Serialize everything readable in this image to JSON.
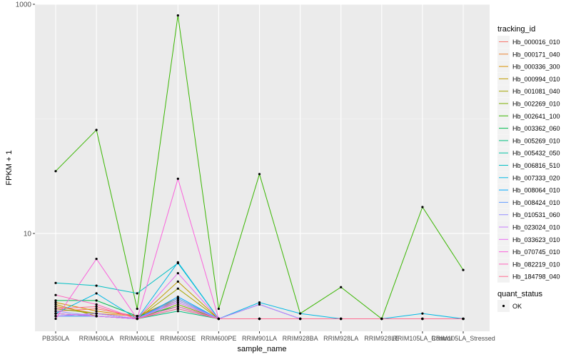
{
  "chart_data": {
    "type": "line",
    "xlabel": "sample_name",
    "ylabel": "FPKM + 1",
    "y_scale": "log10",
    "ylim": [
      1.4,
      1000
    ],
    "y_ticks": [
      {
        "value": 10,
        "label": "10"
      },
      {
        "value": 1000,
        "label": "1000"
      }
    ],
    "grid": true,
    "legend_position": "right",
    "categories": [
      "PB350LA",
      "RRIM600LA",
      "RRIM600LE",
      "RRIM600SE",
      "RRIM600PE",
      "RRIM901LA",
      "RRIM928BA",
      "RRIM928LA",
      "RRIM928LE",
      "RRIM105LA_Control",
      "RRIM105LA_Stressed"
    ],
    "legend_title": "tracking_id",
    "series": [
      {
        "name": "Hb_000016_010",
        "color": "#F8766D",
        "values": [
          2.1,
          2.2,
          1.9,
          2.5,
          1.8,
          1.8,
          1.8,
          1.8,
          1.8,
          1.8,
          1.8
        ]
      },
      {
        "name": "Hb_000171_040",
        "color": "#EA8331",
        "values": [
          2.3,
          2.0,
          1.9,
          2.6,
          1.8,
          1.8,
          1.8,
          1.8,
          1.8,
          1.8,
          1.8
        ]
      },
      {
        "name": "Hb_000336_300",
        "color": "#D89000",
        "values": [
          2.5,
          2.1,
          1.9,
          2.7,
          1.8,
          1.8,
          1.8,
          1.8,
          1.8,
          1.8,
          1.8
        ]
      },
      {
        "name": "Hb_000994_010",
        "color": "#C09B00",
        "values": [
          2.4,
          1.9,
          1.8,
          3.8,
          1.8,
          1.8,
          1.8,
          1.8,
          1.8,
          1.8,
          1.8
        ]
      },
      {
        "name": "Hb_001081_040",
        "color": "#A3A500",
        "values": [
          2.0,
          1.9,
          1.8,
          3.3,
          1.8,
          1.8,
          1.8,
          1.8,
          1.8,
          1.8,
          1.8
        ]
      },
      {
        "name": "Hb_002269_010",
        "color": "#7CAE00",
        "values": [
          2.2,
          2.0,
          1.8,
          2.4,
          1.8,
          1.8,
          1.8,
          1.8,
          1.8,
          1.8,
          1.8
        ]
      },
      {
        "name": "Hb_002641_100",
        "color": "#39B600",
        "values": [
          35,
          80,
          2.2,
          800,
          2.2,
          33,
          2.0,
          3.4,
          1.8,
          17,
          4.8
        ]
      },
      {
        "name": "Hb_003362_060",
        "color": "#00BB4E",
        "values": [
          2.6,
          2.6,
          1.9,
          2.3,
          1.8,
          1.8,
          1.8,
          1.8,
          1.8,
          1.8,
          1.8
        ]
      },
      {
        "name": "Hb_005269_010",
        "color": "#00BF7D",
        "values": [
          2.0,
          1.9,
          1.8,
          2.1,
          1.8,
          1.8,
          1.8,
          1.8,
          1.8,
          1.8,
          1.8
        ]
      },
      {
        "name": "Hb_005432_050",
        "color": "#00C1A3",
        "values": [
          1.9,
          1.9,
          1.8,
          2.2,
          1.8,
          1.8,
          1.8,
          1.8,
          1.8,
          1.8,
          1.8
        ]
      },
      {
        "name": "Hb_006816_510",
        "color": "#00BFC4",
        "values": [
          3.7,
          3.5,
          3.0,
          5.5,
          1.8,
          2.4,
          1.8,
          1.8,
          1.8,
          1.8,
          1.8
        ]
      },
      {
        "name": "Hb_007333_020",
        "color": "#00B8E5",
        "values": [
          2.0,
          3.0,
          1.8,
          5.6,
          1.8,
          2.5,
          2.0,
          1.8,
          1.8,
          2.0,
          1.8
        ]
      },
      {
        "name": "Hb_008064_010",
        "color": "#00A9FF",
        "values": [
          1.9,
          2.0,
          1.8,
          2.8,
          1.8,
          1.8,
          1.8,
          1.8,
          1.8,
          1.8,
          1.8
        ]
      },
      {
        "name": "Hb_008424_010",
        "color": "#619CFF",
        "values": [
          1.9,
          1.9,
          1.8,
          2.7,
          1.8,
          1.8,
          1.8,
          1.8,
          1.8,
          1.8,
          1.8
        ]
      },
      {
        "name": "Hb_010531_060",
        "color": "#9590FF",
        "values": [
          2.1,
          1.9,
          1.8,
          2.6,
          1.8,
          1.8,
          1.8,
          1.8,
          1.8,
          1.8,
          1.8
        ]
      },
      {
        "name": "Hb_023024_010",
        "color": "#C77CFF",
        "values": [
          1.9,
          2.0,
          1.8,
          2.5,
          1.8,
          2.4,
          1.8,
          1.8,
          1.8,
          1.8,
          1.8
        ]
      },
      {
        "name": "Hb_033623_010",
        "color": "#E76BF3",
        "values": [
          2.0,
          1.9,
          1.8,
          4.5,
          1.8,
          1.8,
          1.8,
          1.8,
          1.8,
          1.8,
          1.8
        ]
      },
      {
        "name": "Hb_070745_010",
        "color": "#FA62DB",
        "values": [
          1.8,
          6.0,
          1.8,
          30,
          1.8,
          1.8,
          1.8,
          1.8,
          1.8,
          1.8,
          1.8
        ]
      },
      {
        "name": "Hb_082219_010",
        "color": "#FF62BC",
        "values": [
          2.9,
          2.4,
          1.8,
          2.3,
          1.8,
          1.8,
          1.8,
          1.8,
          1.8,
          1.8,
          1.8
        ]
      },
      {
        "name": "Hb_184798_040",
        "color": "#FF6C91",
        "values": [
          2.2,
          2.3,
          1.8,
          2.2,
          1.8,
          1.8,
          1.8,
          1.8,
          1.8,
          1.8,
          1.8
        ]
      }
    ],
    "quant_legend": {
      "title": "quant_status",
      "items": [
        "OK"
      ]
    }
  }
}
